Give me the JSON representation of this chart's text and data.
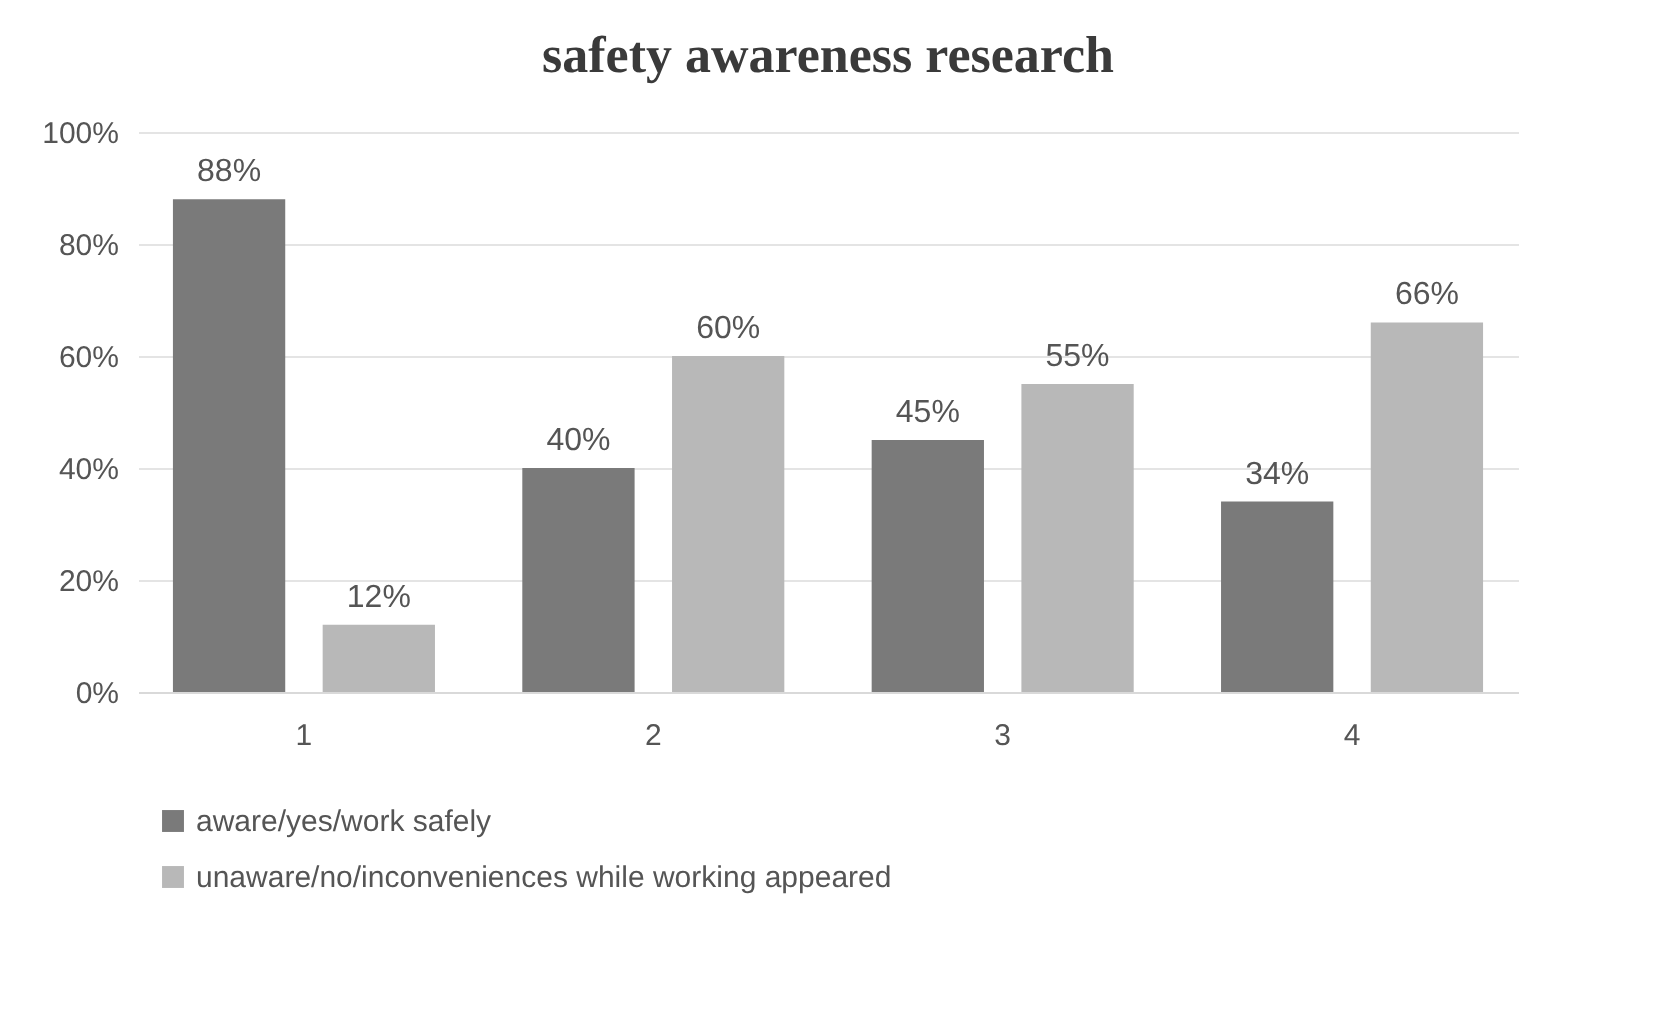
{
  "chart_data": {
    "type": "bar",
    "title": "safety awareness  research",
    "categories": [
      "1",
      "2",
      "3",
      "4"
    ],
    "series": [
      {
        "name": "aware/yes/work safely",
        "color": "#7a7a7a",
        "values": [
          88,
          40,
          45,
          34
        ],
        "value_labels": [
          "88%",
          "40%",
          "45%",
          "34%"
        ]
      },
      {
        "name": "unaware/no/inconveniences while working appeared",
        "color": "#b8b8b8",
        "values": [
          12,
          60,
          55,
          66
        ],
        "value_labels": [
          "12%",
          "60%",
          "55%",
          "66%"
        ]
      }
    ],
    "ylim": [
      0,
      100
    ],
    "yticks": [
      {
        "value": 0,
        "label": "0%"
      },
      {
        "value": 20,
        "label": "20%"
      },
      {
        "value": 40,
        "label": "40%"
      },
      {
        "value": 60,
        "label": "60%"
      },
      {
        "value": 80,
        "label": "80%"
      },
      {
        "value": 100,
        "label": "100%"
      }
    ],
    "grid": "y",
    "legend": "bottom"
  }
}
